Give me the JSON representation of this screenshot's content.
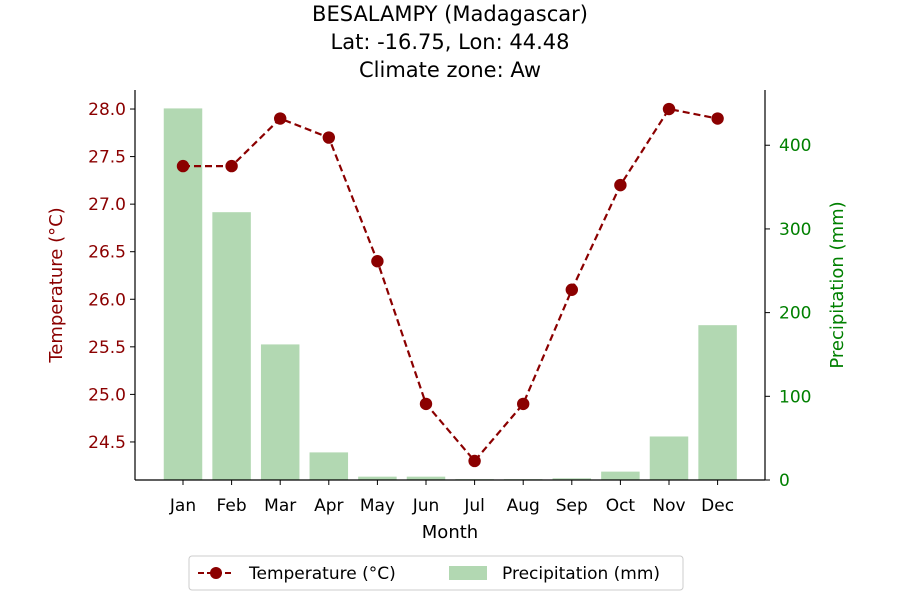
{
  "chart_data": {
    "type": "bar+line",
    "title_lines": [
      "BESALAMPY (Madagascar)",
      "Lat: -16.75, Lon: 44.48",
      "Climate zone: Aw"
    ],
    "xlabel": "Month",
    "ylabel_left": "Temperature (°C)",
    "ylabel_right": "Precipitation (mm)",
    "categories": [
      "Jan",
      "Feb",
      "Mar",
      "Apr",
      "May",
      "Jun",
      "Jul",
      "Aug",
      "Sep",
      "Oct",
      "Nov",
      "Dec"
    ],
    "temperature": {
      "name": "Temperature (°C)",
      "color": "#8b0000",
      "values": [
        27.4,
        27.4,
        27.9,
        27.7,
        26.4,
        24.9,
        24.3,
        24.9,
        26.1,
        27.2,
        28.0,
        27.9
      ]
    },
    "precipitation": {
      "name": "Precipitation (mm)",
      "color": "#b2d8b2",
      "values": [
        444,
        320,
        162,
        33,
        4,
        4,
        1,
        1,
        2,
        10,
        52,
        185
      ]
    },
    "ylim_left": [
      24.1,
      28.2
    ],
    "ylim_right": [
      0,
      466
    ],
    "yticks_left": [
      "24.5",
      "25.0",
      "25.5",
      "26.0",
      "26.5",
      "27.0",
      "27.5",
      "28.0"
    ],
    "yticks_right": [
      "0",
      "100",
      "200",
      "300",
      "400"
    ],
    "left_axis_color": "#8b0000",
    "right_axis_color": "#008000",
    "legend_position": "bottom-center",
    "grid": false
  }
}
